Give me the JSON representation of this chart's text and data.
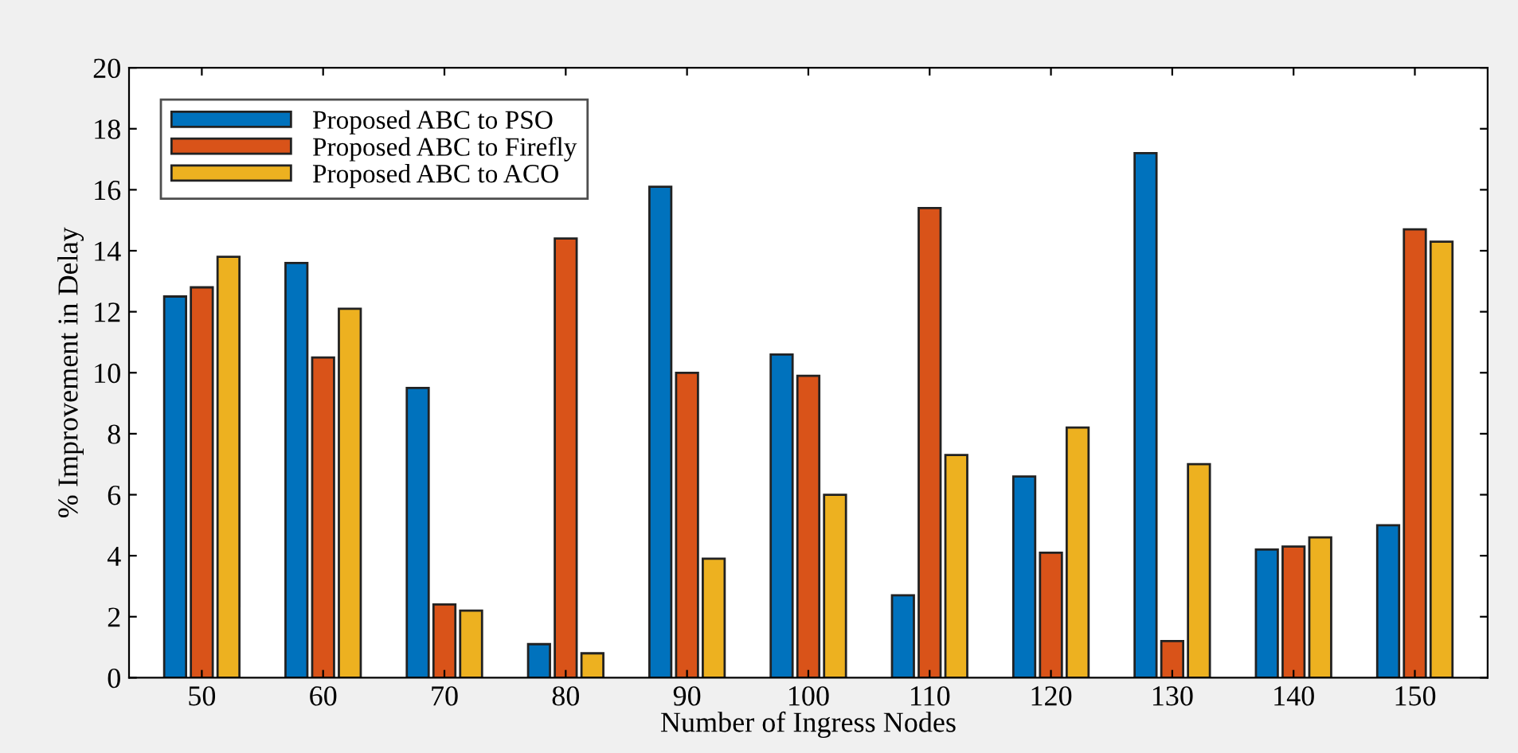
{
  "chart_data": {
    "type": "bar",
    "xlabel": "Number of Ingress Nodes",
    "ylabel": "% Improvement in Delay",
    "categories": [
      "50",
      "60",
      "70",
      "80",
      "90",
      "100",
      "110",
      "120",
      "130",
      "140",
      "150"
    ],
    "series": [
      {
        "name": "Proposed ABC to PSO",
        "color": "#0072bd",
        "values": [
          12.5,
          13.6,
          9.5,
          1.1,
          16.1,
          10.6,
          2.7,
          6.6,
          17.2,
          4.2,
          5.0
        ]
      },
      {
        "name": "Proposed ABC to Firefly",
        "color": "#d95319",
        "values": [
          12.8,
          10.5,
          2.4,
          14.4,
          10.0,
          9.9,
          15.4,
          4.1,
          1.2,
          4.3,
          14.7
        ]
      },
      {
        "name": "Proposed ABC to ACO",
        "color": "#edb120",
        "values": [
          13.8,
          12.1,
          2.2,
          0.8,
          3.9,
          6.0,
          7.3,
          8.2,
          7.0,
          4.6,
          14.3
        ]
      }
    ],
    "ylim": [
      0,
      20
    ],
    "yticks": [
      0,
      2,
      4,
      6,
      8,
      10,
      12,
      14,
      16,
      18,
      20
    ],
    "grid": false,
    "legend": "top left"
  }
}
